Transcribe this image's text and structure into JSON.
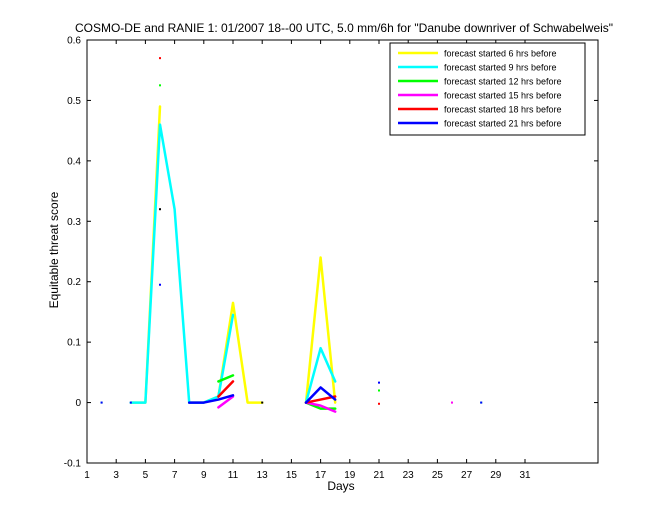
{
  "chart_data": {
    "type": "line",
    "title": "COSMO-DE and RANIE 1: 01/2007 18--00 UTC, 5.0 mm/6h for \"Danube downriver of Schwabelweis\"",
    "xlabel": "Days",
    "ylabel": "Equitable threat score",
    "xlim": [
      1,
      36
    ],
    "ylim": [
      -0.1,
      0.6
    ],
    "xticks": [
      1,
      3,
      5,
      7,
      9,
      11,
      13,
      15,
      17,
      19,
      21,
      23,
      25,
      27,
      29,
      31
    ],
    "yticks": [
      -0.1,
      0,
      0.1,
      0.2,
      0.3,
      0.4,
      0.5,
      0.6
    ],
    "grid": false,
    "legend_position": "top-right",
    "series": [
      {
        "name": "forecast started 6 hrs before",
        "color": "#ffff00",
        "x": [
          1,
          2,
          3,
          4,
          5,
          6,
          7,
          8,
          9,
          10,
          11,
          12,
          13,
          14,
          15,
          16,
          17,
          18,
          19,
          20,
          21,
          22,
          23,
          24,
          25,
          26,
          27,
          28,
          29,
          30,
          31
        ],
        "values": [
          null,
          0,
          null,
          0,
          0,
          0.49,
          null,
          0,
          0,
          0.01,
          0.165,
          0,
          0,
          null,
          null,
          0,
          0.24,
          0,
          null,
          null,
          null,
          null,
          null,
          null,
          null,
          0,
          null,
          0,
          null,
          null,
          null
        ]
      },
      {
        "name": "forecast started 9 hrs before",
        "color": "#00ffff",
        "x": [
          1,
          2,
          3,
          4,
          5,
          6,
          7,
          8,
          9,
          10,
          11,
          12,
          13,
          14,
          15,
          16,
          17,
          18,
          19,
          20,
          21,
          22,
          23,
          24,
          25,
          26,
          27,
          28,
          29,
          30,
          31
        ],
        "values": [
          null,
          0,
          null,
          0,
          0,
          0.46,
          0.32,
          0,
          0,
          0.01,
          0.145,
          null,
          null,
          null,
          null,
          0,
          0.09,
          0.035,
          null,
          null,
          null,
          null,
          null,
          null,
          null,
          null,
          null,
          0,
          null,
          null,
          null
        ]
      },
      {
        "name": "forecast started 12 hrs before",
        "color": "#00ff00",
        "x": [
          1,
          2,
          3,
          4,
          5,
          6,
          7,
          8,
          9,
          10,
          11,
          12,
          13,
          14,
          15,
          16,
          17,
          18,
          19,
          20,
          21,
          22,
          23,
          24,
          25,
          26,
          27,
          28,
          29,
          30,
          31
        ],
        "values": [
          null,
          null,
          null,
          null,
          null,
          0.525,
          null,
          null,
          null,
          0.035,
          0.045,
          null,
          null,
          null,
          null,
          0,
          -0.01,
          -0.01,
          null,
          null,
          0.02,
          null,
          null,
          null,
          null,
          null,
          null,
          null,
          null,
          null,
          null
        ]
      },
      {
        "name": "forecast started 15 hrs before",
        "color": "#ff00ff",
        "x": [
          1,
          2,
          3,
          4,
          5,
          6,
          7,
          8,
          9,
          10,
          11,
          12,
          13,
          14,
          15,
          16,
          17,
          18,
          19,
          20,
          21,
          22,
          23,
          24,
          25,
          26,
          27,
          28,
          29,
          30,
          31
        ],
        "values": [
          null,
          null,
          null,
          null,
          null,
          null,
          null,
          null,
          null,
          -0.008,
          0.01,
          null,
          null,
          null,
          null,
          0,
          -0.005,
          -0.015,
          null,
          null,
          null,
          null,
          null,
          null,
          null,
          0,
          null,
          null,
          null,
          null,
          null
        ]
      },
      {
        "name": "forecast started 18 hrs before",
        "color": "#ff0000",
        "x": [
          1,
          2,
          3,
          4,
          5,
          6,
          7,
          8,
          9,
          10,
          11,
          12,
          13,
          14,
          15,
          16,
          17,
          18,
          19,
          20,
          21,
          22,
          23,
          24,
          25,
          26,
          27,
          28,
          29,
          30,
          31
        ],
        "values": [
          null,
          null,
          null,
          null,
          null,
          0.57,
          null,
          null,
          null,
          0.01,
          0.035,
          null,
          null,
          null,
          null,
          0,
          0.005,
          0.01,
          null,
          null,
          -0.002,
          null,
          null,
          null,
          null,
          null,
          null,
          null,
          null,
          null,
          null
        ]
      },
      {
        "name": "forecast started 21 hrs before",
        "color": "#0000ff",
        "x": [
          1,
          2,
          3,
          4,
          5,
          6,
          7,
          8,
          9,
          10,
          11,
          12,
          13,
          14,
          15,
          16,
          17,
          18,
          19,
          20,
          21,
          22,
          23,
          24,
          25,
          26,
          27,
          28,
          29,
          30,
          31
        ],
        "values": [
          null,
          0,
          null,
          0,
          null,
          0.195,
          null,
          0,
          0,
          0.005,
          0.012,
          null,
          null,
          null,
          null,
          0,
          0.025,
          0.005,
          null,
          null,
          0.033,
          null,
          null,
          null,
          null,
          null,
          null,
          0,
          null,
          null,
          null
        ]
      }
    ],
    "extra_points": [
      {
        "series": "forecast started 21 hrs before",
        "x": 6,
        "y": 0.32,
        "color": "#000000"
      },
      {
        "series": "forecast started 21 hrs before",
        "x": 13,
        "y": 0,
        "color": "#000000"
      }
    ]
  }
}
